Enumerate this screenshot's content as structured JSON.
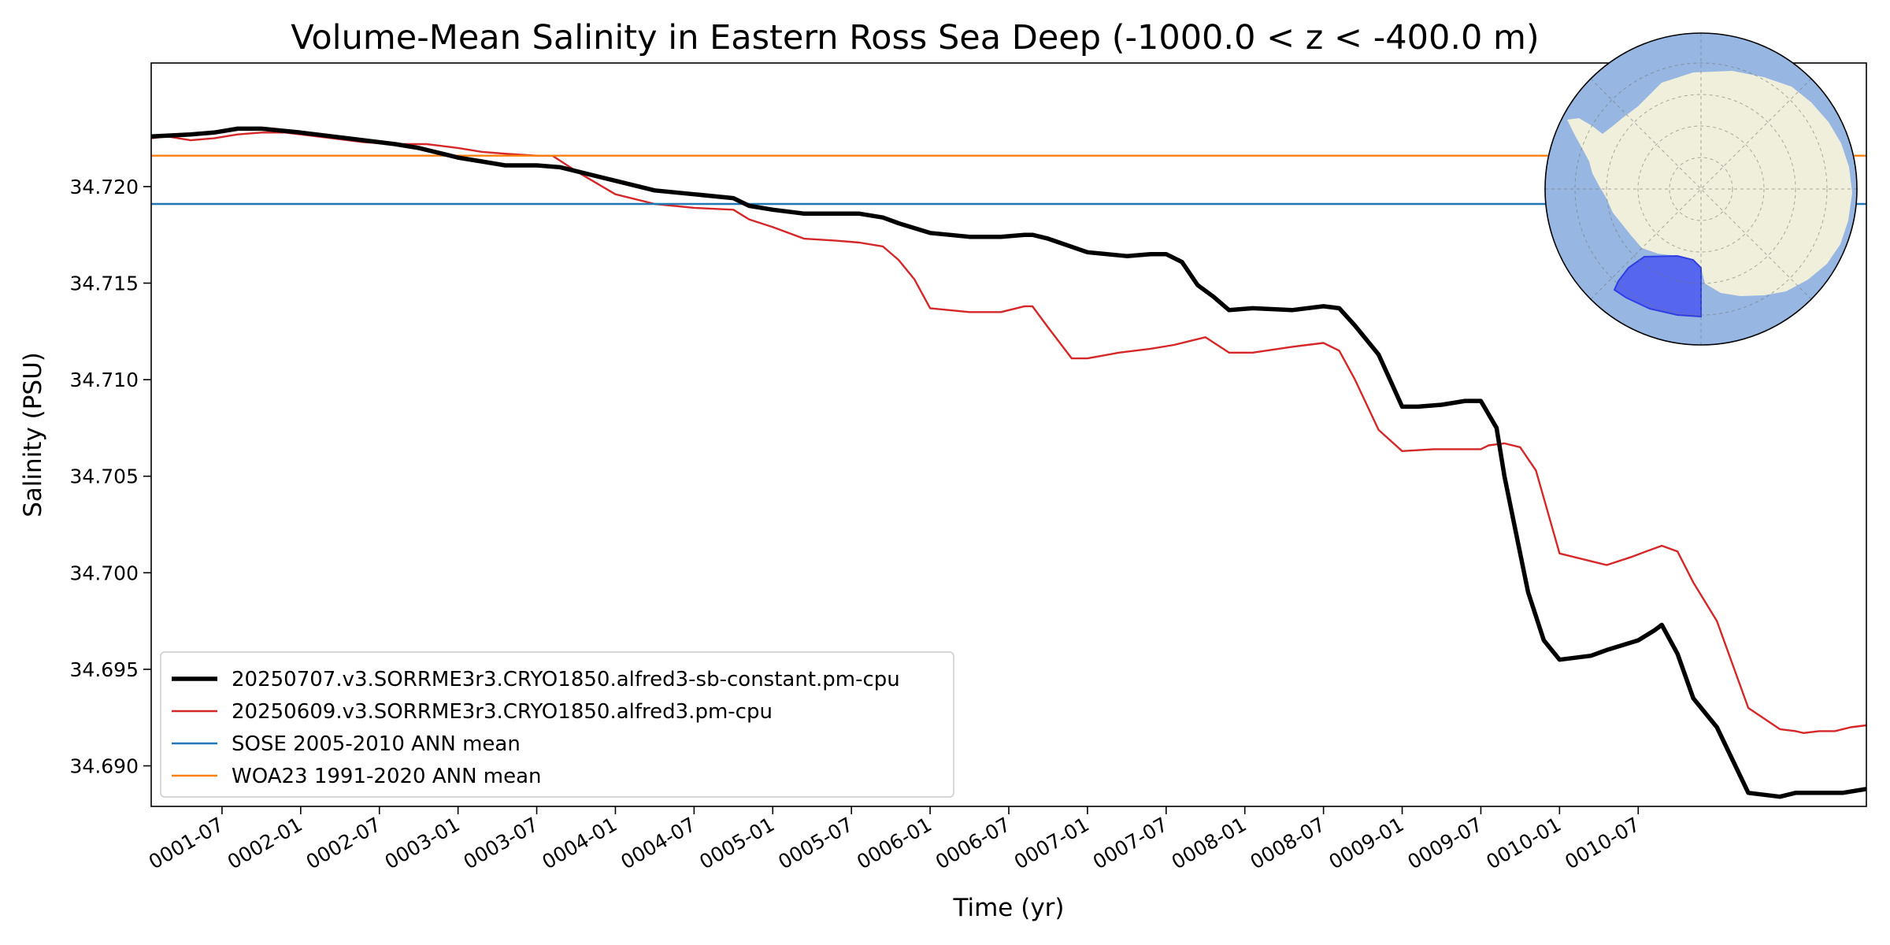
{
  "chart_data": {
    "type": "line",
    "title": "Volume-Mean Salinity in Eastern Ross Sea Deep (-1000.0 < z < -400.0 m)",
    "xlabel": "Time (yr)",
    "ylabel": "Salinity (PSU)",
    "xlim": [
      0.05,
      10.95
    ],
    "ylim": [
      34.6879,
      34.7264
    ],
    "x_ticks": [
      {
        "value": 0.5,
        "label": "0001-07"
      },
      {
        "value": 1.0,
        "label": "0002-01"
      },
      {
        "value": 1.5,
        "label": "0002-07"
      },
      {
        "value": 2.0,
        "label": "0003-01"
      },
      {
        "value": 2.5,
        "label": "0003-07"
      },
      {
        "value": 3.0,
        "label": "0004-01"
      },
      {
        "value": 3.5,
        "label": "0004-07"
      },
      {
        "value": 4.0,
        "label": "0005-01"
      },
      {
        "value": 4.5,
        "label": "0005-07"
      },
      {
        "value": 5.0,
        "label": "0006-01"
      },
      {
        "value": 5.5,
        "label": "0006-07"
      },
      {
        "value": 6.0,
        "label": "0007-01"
      },
      {
        "value": 6.5,
        "label": "0007-07"
      },
      {
        "value": 7.0,
        "label": "0008-01"
      },
      {
        "value": 7.5,
        "label": "0008-07"
      },
      {
        "value": 8.0,
        "label": "0009-01"
      },
      {
        "value": 8.5,
        "label": "0009-07"
      },
      {
        "value": 9.0,
        "label": "0010-01"
      },
      {
        "value": 9.5,
        "label": "0010-07"
      }
    ],
    "y_ticks": [
      {
        "value": 34.69,
        "label": "34.690"
      },
      {
        "value": 34.695,
        "label": "34.695"
      },
      {
        "value": 34.7,
        "label": "34.700"
      },
      {
        "value": 34.705,
        "label": "34.705"
      },
      {
        "value": 34.71,
        "label": "34.710"
      },
      {
        "value": 34.715,
        "label": "34.715"
      },
      {
        "value": 34.72,
        "label": "34.720"
      }
    ],
    "grid": false,
    "legend_position": "lower-left",
    "series": [
      {
        "name": "20250707.v3.SORRME3r3.CRYO1850.alfred3-sb-constant.pm-cpu",
        "color": "#000000",
        "style": "thick",
        "x": [
          0.05,
          0.3,
          0.45,
          0.6,
          0.75,
          1.0,
          1.2,
          1.4,
          1.6,
          1.75,
          1.9,
          2.0,
          2.15,
          2.3,
          2.5,
          2.65,
          2.75,
          3.0,
          3.25,
          3.5,
          3.75,
          3.85,
          4.0,
          4.2,
          4.4,
          4.55,
          4.7,
          4.8,
          5.0,
          5.25,
          5.45,
          5.6,
          5.65,
          5.75,
          6.0,
          6.25,
          6.4,
          6.5,
          6.6,
          6.7,
          6.8,
          6.9,
          7.05,
          7.3,
          7.5,
          7.6,
          7.7,
          7.85,
          7.95,
          8.0,
          8.1,
          8.25,
          8.4,
          8.5,
          8.6,
          8.65,
          8.75,
          8.8,
          8.9,
          9.0,
          9.2,
          9.3,
          9.5,
          9.6,
          9.65,
          9.75,
          9.85,
          10.0,
          10.2,
          10.4,
          10.5,
          10.55,
          10.65,
          10.75,
          10.8,
          10.95
        ],
        "y": [
          34.7226,
          34.7227,
          34.7228,
          34.723,
          34.723,
          34.7228,
          34.7226,
          34.7224,
          34.7222,
          34.722,
          34.7217,
          34.7215,
          34.7213,
          34.7211,
          34.7211,
          34.721,
          34.7208,
          34.7203,
          34.7198,
          34.7196,
          34.7194,
          34.719,
          34.7188,
          34.7186,
          34.7186,
          34.7186,
          34.7184,
          34.7181,
          34.7176,
          34.7174,
          34.7174,
          34.7175,
          34.7175,
          34.7173,
          34.7166,
          34.7164,
          34.7165,
          34.7165,
          34.7161,
          34.7149,
          34.7143,
          34.7136,
          34.7137,
          34.7136,
          34.7138,
          34.7137,
          34.7128,
          34.7113,
          34.7095,
          34.7086,
          34.7086,
          34.7087,
          34.7089,
          34.7089,
          34.7075,
          34.705,
          34.701,
          34.699,
          34.6965,
          34.6955,
          34.6957,
          34.696,
          34.6965,
          34.697,
          34.6973,
          34.6958,
          34.6935,
          34.692,
          34.6886,
          34.6884,
          34.6886,
          34.6886,
          34.6886,
          34.6886,
          34.6886,
          34.6888
        ]
      },
      {
        "name": "20250609.v3.SORRME3r3.CRYO1850.alfred3.pm-cpu",
        "color": "#d62728",
        "style": "thin",
        "x": [
          0.05,
          0.15,
          0.3,
          0.45,
          0.6,
          0.75,
          0.9,
          1.0,
          1.2,
          1.4,
          1.6,
          1.8,
          1.9,
          2.0,
          2.15,
          2.3,
          2.5,
          2.6,
          2.75,
          3.0,
          3.25,
          3.5,
          3.75,
          3.85,
          4.0,
          4.2,
          4.4,
          4.55,
          4.7,
          4.8,
          4.9,
          5.0,
          5.25,
          5.45,
          5.6,
          5.65,
          5.75,
          5.9,
          6.0,
          6.2,
          6.4,
          6.55,
          6.65,
          6.75,
          6.9,
          7.05,
          7.3,
          7.5,
          7.6,
          7.7,
          7.85,
          8.0,
          8.2,
          8.4,
          8.5,
          8.55,
          8.65,
          8.75,
          8.85,
          9.0,
          9.3,
          9.45,
          9.55,
          9.65,
          9.75,
          9.85,
          10.0,
          10.2,
          10.4,
          10.5,
          10.55,
          10.65,
          10.75,
          10.85,
          10.95
        ],
        "y": [
          34.7225,
          34.7226,
          34.7224,
          34.7225,
          34.7227,
          34.7228,
          34.7228,
          34.7227,
          34.7225,
          34.7223,
          34.7222,
          34.7222,
          34.7221,
          34.722,
          34.7218,
          34.7217,
          34.7216,
          34.7216,
          34.7208,
          34.7196,
          34.7191,
          34.7189,
          34.7188,
          34.7183,
          34.7179,
          34.7173,
          34.7172,
          34.7171,
          34.7169,
          34.7162,
          34.7152,
          34.7137,
          34.7135,
          34.7135,
          34.7138,
          34.7138,
          34.7127,
          34.7111,
          34.7111,
          34.7114,
          34.7116,
          34.7118,
          34.712,
          34.7122,
          34.7114,
          34.7114,
          34.7117,
          34.7119,
          34.7115,
          34.71,
          34.7074,
          34.7063,
          34.7064,
          34.7064,
          34.7064,
          34.7066,
          34.7067,
          34.7065,
          34.7053,
          34.701,
          34.7004,
          34.7008,
          34.7011,
          34.7014,
          34.7011,
          34.6995,
          34.6975,
          34.693,
          34.6919,
          34.6918,
          34.6917,
          34.6918,
          34.6918,
          34.692,
          34.6921
        ]
      },
      {
        "name": "SOSE 2005-2010 ANN mean",
        "color": "#1f77b4",
        "style": "thin",
        "hline": 34.7191
      },
      {
        "name": "WOA23 1991-2020 ANN mean",
        "color": "#ff7f0e",
        "style": "thin",
        "hline": 34.7216
      }
    ],
    "inset_map": {
      "region": "Eastern Ross Sea",
      "ocean_color": "#97b6e1",
      "land_color": "#efefdb",
      "region_color": "#4b58f0"
    }
  }
}
